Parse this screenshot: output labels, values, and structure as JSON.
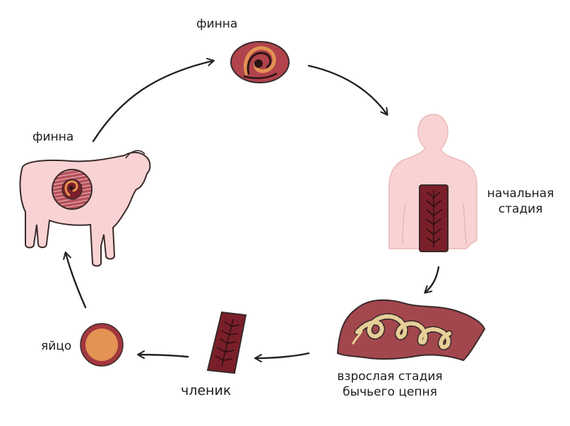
{
  "colors": {
    "skin": "#f9d3d3",
    "outline": "#3a2a2a",
    "tissue": "#a3474e",
    "tissue_dark": "#7a1f29",
    "cyst_fill": "#b8505a",
    "egg_core": "#e39353",
    "egg_ring": "#a3373f",
    "worm_beige": "#e6cf98",
    "arrow": "#222222"
  },
  "labels": {
    "finna_top": "финна",
    "finna_cow": "финна",
    "initial_stage_line1": "начальная",
    "initial_stage_line2": "стадия",
    "adult_stage_line1": "взрослая стадия",
    "adult_stage_line2": "бычьего цепня",
    "segment": "членик",
    "egg": "яйцо"
  },
  "cycle": [
    "яйцо",
    "финна",
    "финна",
    "начальная стадия",
    "взрослая стадия бычьего цепня",
    "членик"
  ]
}
